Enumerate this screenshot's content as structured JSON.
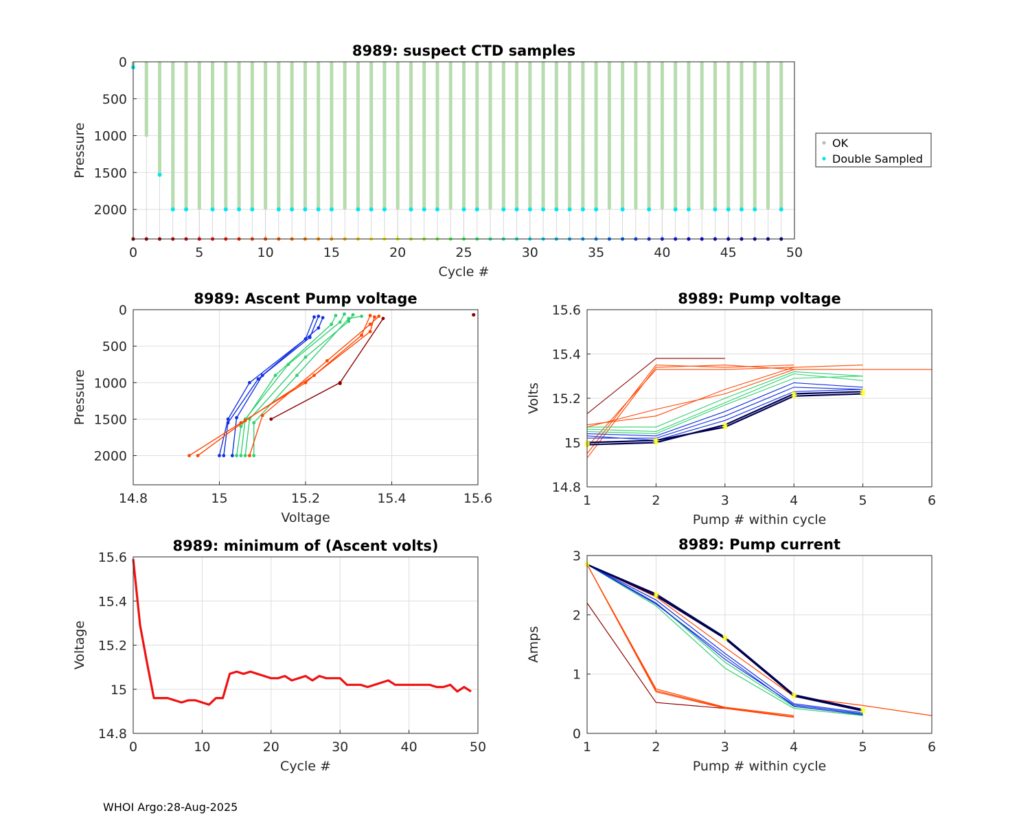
{
  "footer": "WHOI Argo:28-Aug-2025",
  "colors": {
    "ok": "#bdbdbd",
    "double": "#00e5ee",
    "profile_bar": "#b7dcaf",
    "min_line": "#ee1111",
    "star": "#ffff33",
    "grid": "#dddddd"
  },
  "chart_data": [
    {
      "id": "suspect",
      "type": "scatter",
      "title": "8989: suspect CTD samples",
      "xlabel": "Cycle #",
      "ylabel": "Pressure",
      "xlim": [
        0,
        50
      ],
      "ylim": [
        0,
        2400
      ],
      "y_reversed": true,
      "xticks": [
        "0",
        "5",
        "10",
        "15",
        "20",
        "25",
        "30",
        "35",
        "40",
        "45",
        "50"
      ],
      "yticks": [
        "0",
        "500",
        "1000",
        "1500",
        "2000"
      ],
      "legend": [
        {
          "label": "OK",
          "color": "#bdbdbd"
        },
        {
          "label": "Double Sampled",
          "color": "#00e5ee"
        }
      ],
      "legend_position": "outside-right",
      "profiles": [
        {
          "cycle": 0,
          "max_pressure": 70
        },
        {
          "cycle": 1,
          "max_pressure": 1015
        },
        {
          "cycle": 2,
          "max_pressure": 1530
        },
        {
          "cycle": 3,
          "max_pressure": 2000
        },
        {
          "cycle": 4,
          "max_pressure": 2000
        },
        {
          "cycle": 5,
          "max_pressure": 2000
        },
        {
          "cycle": 6,
          "max_pressure": 2000
        },
        {
          "cycle": 7,
          "max_pressure": 2000
        },
        {
          "cycle": 8,
          "max_pressure": 2000
        },
        {
          "cycle": 9,
          "max_pressure": 2000
        },
        {
          "cycle": 10,
          "max_pressure": 2000
        },
        {
          "cycle": 11,
          "max_pressure": 2000
        },
        {
          "cycle": 12,
          "max_pressure": 2000
        },
        {
          "cycle": 13,
          "max_pressure": 2000
        },
        {
          "cycle": 14,
          "max_pressure": 2000
        },
        {
          "cycle": 15,
          "max_pressure": 2000
        },
        {
          "cycle": 16,
          "max_pressure": 2000
        },
        {
          "cycle": 17,
          "max_pressure": 2000
        },
        {
          "cycle": 18,
          "max_pressure": 2000
        },
        {
          "cycle": 19,
          "max_pressure": 2000
        },
        {
          "cycle": 20,
          "max_pressure": 2000
        },
        {
          "cycle": 21,
          "max_pressure": 2000
        },
        {
          "cycle": 22,
          "max_pressure": 2000
        },
        {
          "cycle": 23,
          "max_pressure": 2000
        },
        {
          "cycle": 24,
          "max_pressure": 2000
        },
        {
          "cycle": 25,
          "max_pressure": 2000
        },
        {
          "cycle": 26,
          "max_pressure": 2000
        },
        {
          "cycle": 27,
          "max_pressure": 2000
        },
        {
          "cycle": 28,
          "max_pressure": 2000
        },
        {
          "cycle": 29,
          "max_pressure": 2000
        },
        {
          "cycle": 30,
          "max_pressure": 2000
        },
        {
          "cycle": 31,
          "max_pressure": 2000
        },
        {
          "cycle": 32,
          "max_pressure": 2000
        },
        {
          "cycle": 33,
          "max_pressure": 2000
        },
        {
          "cycle": 34,
          "max_pressure": 2000
        },
        {
          "cycle": 35,
          "max_pressure": 2000
        },
        {
          "cycle": 36,
          "max_pressure": 2000
        },
        {
          "cycle": 37,
          "max_pressure": 2000
        },
        {
          "cycle": 38,
          "max_pressure": 2000
        },
        {
          "cycle": 39,
          "max_pressure": 2000
        },
        {
          "cycle": 40,
          "max_pressure": 2000
        },
        {
          "cycle": 41,
          "max_pressure": 2000
        },
        {
          "cycle": 42,
          "max_pressure": 2000
        },
        {
          "cycle": 43,
          "max_pressure": 2000
        },
        {
          "cycle": 44,
          "max_pressure": 2000
        },
        {
          "cycle": 45,
          "max_pressure": 2000
        },
        {
          "cycle": 46,
          "max_pressure": 2000
        },
        {
          "cycle": 47,
          "max_pressure": 2000
        },
        {
          "cycle": 48,
          "max_pressure": 2000
        },
        {
          "cycle": 49,
          "max_pressure": 2000
        }
      ],
      "double_sampled": [
        {
          "cycle": 0,
          "pressure": 75
        },
        {
          "cycle": 2,
          "pressure": 1530
        },
        {
          "cycle": 3,
          "pressure": 2000
        },
        {
          "cycle": 4,
          "pressure": 2000
        },
        {
          "cycle": 6,
          "pressure": 2000
        },
        {
          "cycle": 7,
          "pressure": 2000
        },
        {
          "cycle": 8,
          "pressure": 2000
        },
        {
          "cycle": 9,
          "pressure": 2000
        },
        {
          "cycle": 11,
          "pressure": 2000
        },
        {
          "cycle": 12,
          "pressure": 2000
        },
        {
          "cycle": 13,
          "pressure": 2000
        },
        {
          "cycle": 14,
          "pressure": 2000
        },
        {
          "cycle": 15,
          "pressure": 2000
        },
        {
          "cycle": 17,
          "pressure": 2000
        },
        {
          "cycle": 18,
          "pressure": 2000
        },
        {
          "cycle": 19,
          "pressure": 2000
        },
        {
          "cycle": 21,
          "pressure": 2000
        },
        {
          "cycle": 22,
          "pressure": 2000
        },
        {
          "cycle": 23,
          "pressure": 2000
        },
        {
          "cycle": 25,
          "pressure": 2000
        },
        {
          "cycle": 26,
          "pressure": 2000
        },
        {
          "cycle": 28,
          "pressure": 2000
        },
        {
          "cycle": 29,
          "pressure": 2000
        },
        {
          "cycle": 30,
          "pressure": 2000
        },
        {
          "cycle": 31,
          "pressure": 2000
        },
        {
          "cycle": 32,
          "pressure": 2000
        },
        {
          "cycle": 33,
          "pressure": 2000
        },
        {
          "cycle": 34,
          "pressure": 2000
        },
        {
          "cycle": 35,
          "pressure": 2000
        },
        {
          "cycle": 37,
          "pressure": 2000
        },
        {
          "cycle": 39,
          "pressure": 2000
        },
        {
          "cycle": 41,
          "pressure": 2000
        },
        {
          "cycle": 42,
          "pressure": 2000
        },
        {
          "cycle": 44,
          "pressure": 2000
        },
        {
          "cycle": 45,
          "pressure": 2000
        },
        {
          "cycle": 46,
          "pressure": 2000
        },
        {
          "cycle": 47,
          "pressure": 2000
        },
        {
          "cycle": 49,
          "pressure": 2000
        }
      ],
      "cycle_markers_pressure": 2400
    },
    {
      "id": "ascent",
      "type": "line",
      "title": "8989: Ascent Pump voltage",
      "xlabel": "Voltage",
      "ylabel": "Pressure",
      "xlim": [
        14.8,
        15.6
      ],
      "ylim": [
        0,
        2400
      ],
      "y_reversed": true,
      "xticks": [
        "14.8",
        "15",
        "15.2",
        "15.4",
        "15.6"
      ],
      "yticks": [
        "0",
        "500",
        "1000",
        "1500",
        "2000"
      ],
      "series": [
        {
          "group": "late",
          "points": [
            [
              15.0,
              2000
            ],
            [
              15.02,
              1500
            ],
            [
              15.07,
              1000
            ],
            [
              15.2,
              400
            ],
            [
              15.22,
              100
            ]
          ]
        },
        {
          "group": "late",
          "points": [
            [
              15.01,
              2000
            ],
            [
              15.02,
              1550
            ],
            [
              15.09,
              950
            ],
            [
              15.21,
              380
            ],
            [
              15.23,
              90
            ]
          ]
        },
        {
          "group": "late",
          "points": [
            [
              15.03,
              2000
            ],
            [
              15.04,
              1480
            ],
            [
              15.1,
              900
            ],
            [
              15.23,
              250
            ],
            [
              15.24,
              110
            ]
          ]
        },
        {
          "group": "mid",
          "points": [
            [
              15.04,
              2000
            ],
            [
              15.05,
              1600
            ],
            [
              15.13,
              900
            ],
            [
              15.26,
              200
            ],
            [
              15.27,
              80
            ]
          ]
        },
        {
          "group": "mid",
          "points": [
            [
              15.05,
              2000
            ],
            [
              15.06,
              1500
            ],
            [
              15.16,
              750
            ],
            [
              15.28,
              170
            ],
            [
              15.29,
              60
            ]
          ]
        },
        {
          "group": "mid",
          "points": [
            [
              15.06,
              2000
            ],
            [
              15.07,
              1500
            ],
            [
              15.2,
              650
            ],
            [
              15.3,
              160
            ],
            [
              15.31,
              70
            ]
          ]
        },
        {
          "group": "mid",
          "points": [
            [
              15.08,
              2000
            ],
            [
              15.08,
              1550
            ],
            [
              15.18,
              900
            ],
            [
              15.3,
              120
            ],
            [
              15.33,
              90
            ]
          ]
        },
        {
          "group": "early",
          "points": [
            [
              14.93,
              2000
            ],
            [
              15.05,
              1550
            ],
            [
              15.2,
              1000
            ],
            [
              15.33,
              350
            ],
            [
              15.35,
              80
            ]
          ]
        },
        {
          "group": "early",
          "points": [
            [
              14.95,
              2000
            ],
            [
              15.06,
              1520
            ],
            [
              15.22,
              900
            ],
            [
              15.35,
              300
            ],
            [
              15.36,
              100
            ]
          ]
        },
        {
          "group": "early",
          "points": [
            [
              15.07,
              2000
            ],
            [
              15.1,
              1450
            ],
            [
              15.25,
              700
            ],
            [
              15.35,
              200
            ],
            [
              15.37,
              90
            ]
          ]
        },
        {
          "group": "first",
          "points": [
            [
              15.12,
              1500
            ],
            [
              15.28,
              1000
            ],
            [
              15.38,
              120
            ]
          ]
        }
      ],
      "outliers": [
        {
          "voltage": 15.59,
          "pressure": 70
        },
        {
          "voltage": 15.28,
          "pressure": 1010
        }
      ]
    },
    {
      "id": "pumpv",
      "type": "line",
      "title": "8989: Pump voltage",
      "xlabel": "Pump # within cycle",
      "ylabel": "Volts",
      "xlim": [
        1,
        6
      ],
      "ylim": [
        14.8,
        15.6
      ],
      "xticks": [
        "1",
        "2",
        "3",
        "4",
        "5",
        "6"
      ],
      "yticks": [
        "14.8",
        "15",
        "15.2",
        "15.4",
        "15.6"
      ],
      "series": [
        {
          "group": "first",
          "values": [
            15.13,
            15.38,
            15.38
          ]
        },
        {
          "group": "early",
          "values": [
            14.95,
            15.35,
            15.34,
            15.35
          ]
        },
        {
          "group": "early",
          "values": [
            14.93,
            15.34,
            15.35,
            15.33
          ]
        },
        {
          "group": "early",
          "values": [
            14.98,
            15.33,
            15.33,
            15.34
          ]
        },
        {
          "group": "early",
          "values": [
            15.07,
            15.15,
            15.22,
            15.33,
            15.33,
            15.33
          ]
        },
        {
          "group": "early",
          "values": [
            15.08,
            15.12,
            15.24,
            15.34,
            15.35
          ]
        },
        {
          "group": "mid",
          "values": [
            15.07,
            15.07,
            15.2,
            15.32,
            15.3
          ]
        },
        {
          "group": "mid",
          "values": [
            15.06,
            15.05,
            15.18,
            15.31,
            15.28
          ]
        },
        {
          "group": "mid",
          "values": [
            15.05,
            15.04,
            15.17,
            15.29,
            15.3
          ]
        },
        {
          "group": "late",
          "values": [
            15.04,
            15.03,
            15.14,
            15.27,
            15.25
          ]
        },
        {
          "group": "late",
          "values": [
            15.02,
            15.02,
            15.12,
            15.25,
            15.24
          ]
        },
        {
          "group": "late",
          "values": [
            15.03,
            15.01,
            15.1,
            15.23,
            15.24
          ]
        },
        {
          "group": "last",
          "values": [
            15.0,
            15.01,
            15.07,
            15.21,
            15.22
          ]
        },
        {
          "group": "last",
          "values": [
            14.99,
            15.0,
            15.08,
            15.22,
            15.23
          ]
        }
      ]
    },
    {
      "id": "minv",
      "type": "line",
      "title": "8989: minimum of (Ascent volts)",
      "xlabel": "Cycle #",
      "ylabel": "Voltage",
      "xlim": [
        0,
        50
      ],
      "ylim": [
        14.8,
        15.6
      ],
      "xticks": [
        "0",
        "10",
        "20",
        "30",
        "40",
        "50"
      ],
      "yticks": [
        "14.8",
        "15",
        "15.2",
        "15.4",
        "15.6"
      ],
      "x": [
        0,
        1,
        2,
        3,
        4,
        5,
        6,
        7,
        8,
        9,
        10,
        11,
        12,
        13,
        14,
        15,
        16,
        17,
        18,
        19,
        20,
        21,
        22,
        23,
        24,
        25,
        26,
        27,
        28,
        29,
        30,
        31,
        32,
        33,
        34,
        35,
        36,
        37,
        38,
        39,
        40,
        41,
        42,
        43,
        44,
        45,
        46,
        47,
        48,
        49
      ],
      "y": [
        15.59,
        15.29,
        15.12,
        14.96,
        14.96,
        14.96,
        14.95,
        14.94,
        14.95,
        14.95,
        14.94,
        14.93,
        14.96,
        14.96,
        15.07,
        15.08,
        15.07,
        15.08,
        15.07,
        15.06,
        15.05,
        15.05,
        15.06,
        15.04,
        15.05,
        15.06,
        15.04,
        15.06,
        15.05,
        15.05,
        15.05,
        15.02,
        15.02,
        15.02,
        15.01,
        15.02,
        15.03,
        15.04,
        15.02,
        15.02,
        15.02,
        15.02,
        15.02,
        15.02,
        15.01,
        15.01,
        15.02,
        14.99,
        15.01,
        14.99
      ]
    },
    {
      "id": "pumpc",
      "type": "line",
      "title": "8989: Pump current",
      "xlabel": "Pump # within cycle",
      "ylabel": "Amps",
      "xlim": [
        1,
        6
      ],
      "ylim": [
        0,
        3
      ],
      "xticks": [
        "1",
        "2",
        "3",
        "4",
        "5",
        "6"
      ],
      "yticks": [
        "0",
        "1",
        "2",
        "3"
      ],
      "series": [
        {
          "group": "first",
          "values": [
            2.2,
            0.52,
            0.42
          ]
        },
        {
          "group": "early",
          "values": [
            2.85,
            0.75,
            0.44,
            0.3
          ]
        },
        {
          "group": "early",
          "values": [
            2.85,
            0.72,
            0.43,
            0.28
          ]
        },
        {
          "group": "early",
          "values": [
            2.85,
            0.7,
            0.42,
            0.27
          ]
        },
        {
          "group": "early",
          "values": [
            2.85,
            2.3,
            1.45,
            0.62,
            0.47,
            0.3
          ]
        },
        {
          "group": "mid",
          "values": [
            2.85,
            2.2,
            1.2,
            0.45,
            0.32
          ]
        },
        {
          "group": "mid",
          "values": [
            2.85,
            2.15,
            1.1,
            0.42,
            0.3
          ]
        },
        {
          "group": "late",
          "values": [
            2.85,
            2.2,
            1.25,
            0.48,
            0.33
          ]
        },
        {
          "group": "late",
          "values": [
            2.85,
            2.25,
            1.35,
            0.5,
            0.35
          ]
        },
        {
          "group": "late",
          "values": [
            2.85,
            2.18,
            1.3,
            0.46,
            0.31
          ]
        },
        {
          "group": "last",
          "values": [
            2.85,
            2.35,
            1.62,
            0.65,
            0.4
          ]
        },
        {
          "group": "last",
          "values": [
            2.85,
            2.32,
            1.6,
            0.63,
            0.38
          ]
        }
      ]
    }
  ]
}
